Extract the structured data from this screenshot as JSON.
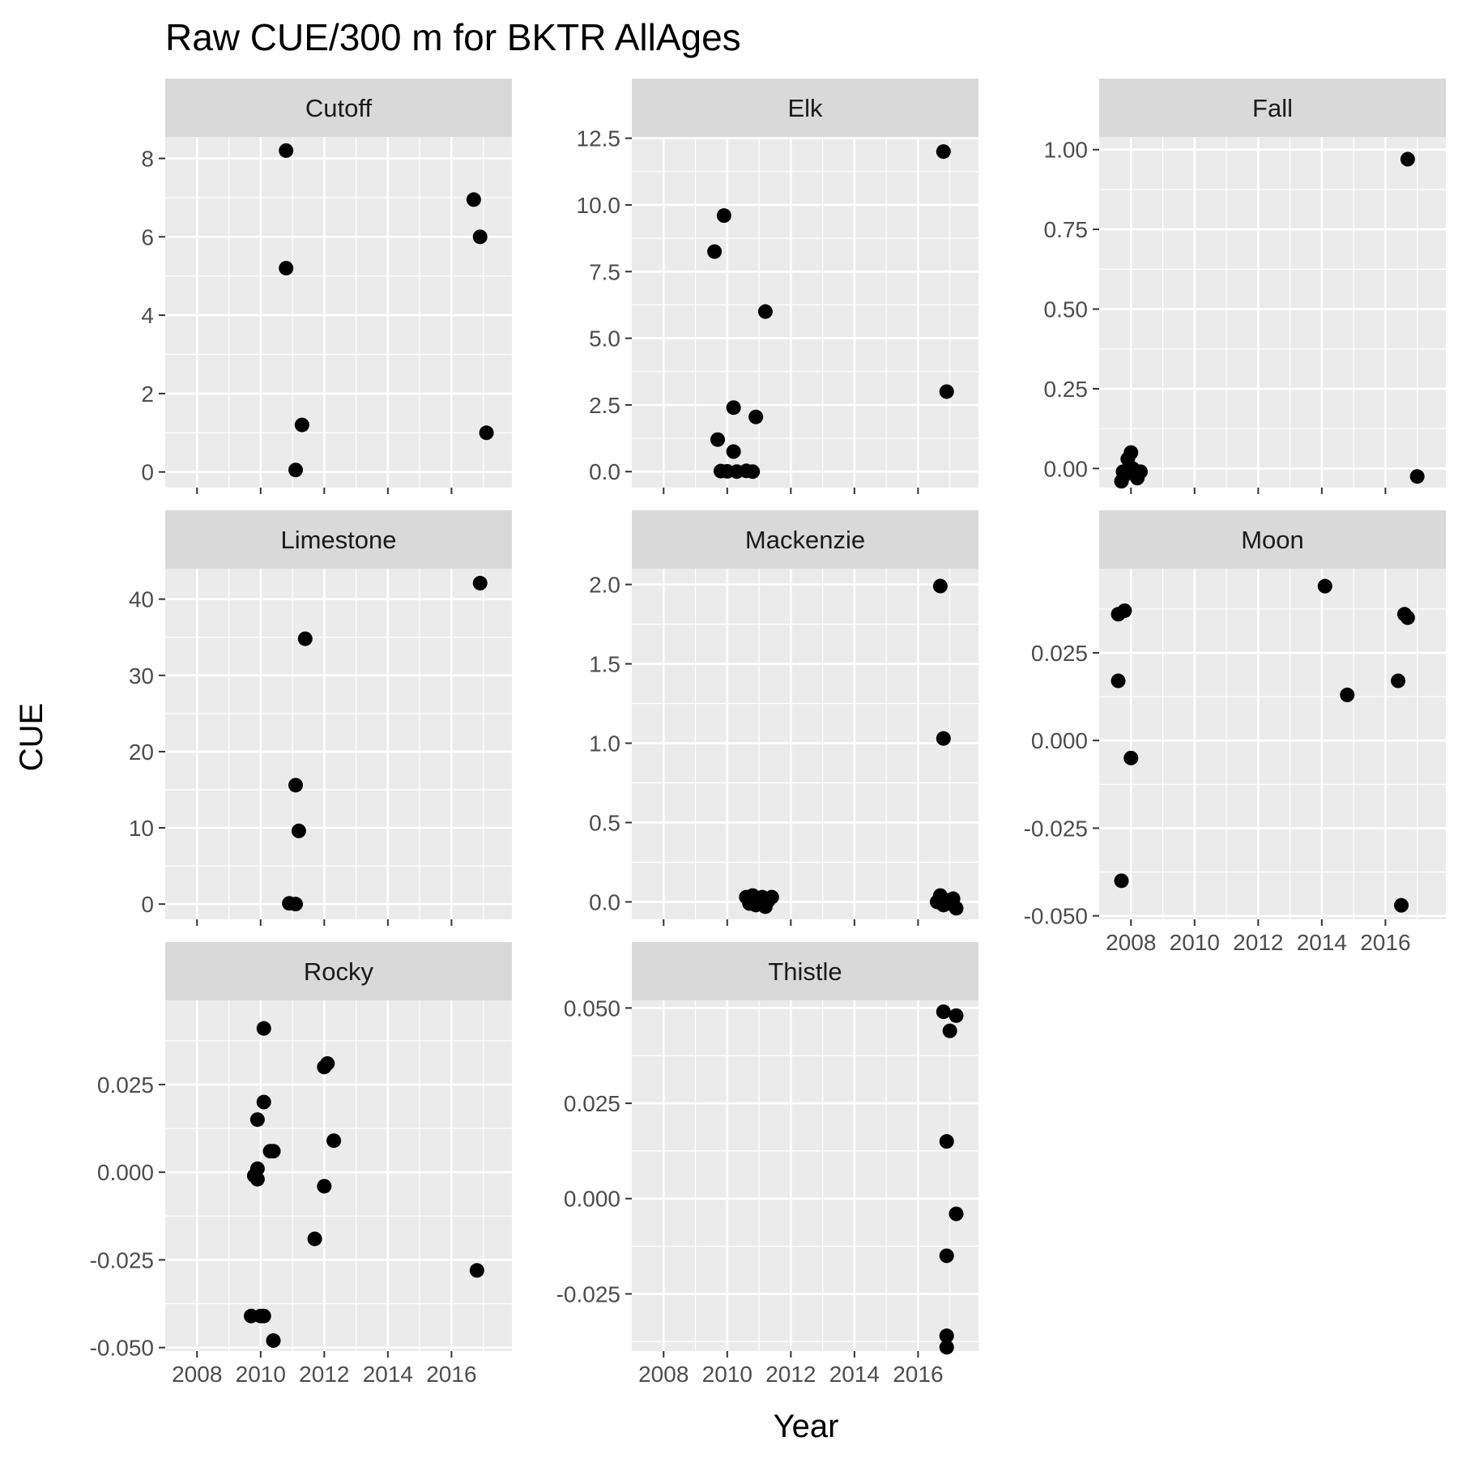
{
  "chart_data": {
    "type": "scatter",
    "title": "Raw CUE/300 m for BKTR AllAges",
    "xlabel": "Year",
    "ylabel": "CUE",
    "x_ticks": [
      2008,
      2010,
      2012,
      2014,
      2016
    ],
    "xlim": [
      2007.0,
      2017.9
    ],
    "grid": true,
    "colors": {
      "panel_bg": "#ebebeb",
      "strip_bg": "#d9d9d9",
      "grid": "#ffffff",
      "point": "#000000",
      "tick": "#333333"
    },
    "panels": [
      {
        "name": "Cutoff",
        "ylim": [
          -0.4,
          8.55
        ],
        "y_ticks": [
          0,
          2,
          4,
          6,
          8
        ],
        "y_tick_labels": [
          "0",
          "2",
          "4",
          "6",
          "8"
        ],
        "points": [
          [
            2010.8,
            8.2
          ],
          [
            2010.8,
            5.2
          ],
          [
            2011.3,
            1.2
          ],
          [
            2011.1,
            0.05
          ],
          [
            2016.7,
            6.95
          ],
          [
            2016.9,
            6.0
          ],
          [
            2017.1,
            1.0
          ]
        ]
      },
      {
        "name": "Elk",
        "ylim": [
          -0.6,
          12.55
        ],
        "y_ticks": [
          0.0,
          2.5,
          5.0,
          7.5,
          10.0,
          12.5
        ],
        "y_tick_labels": [
          "0.0",
          "2.5",
          "5.0",
          "7.5",
          "10.0",
          "12.5"
        ],
        "points": [
          [
            2009.9,
            9.6
          ],
          [
            2009.6,
            8.25
          ],
          [
            2011.2,
            6.0
          ],
          [
            2010.2,
            2.4
          ],
          [
            2010.9,
            2.05
          ],
          [
            2009.7,
            1.2
          ],
          [
            2010.2,
            0.75
          ],
          [
            2009.8,
            0.02
          ],
          [
            2010.0,
            0.01
          ],
          [
            2010.3,
            0.0
          ],
          [
            2010.6,
            0.03
          ],
          [
            2010.8,
            0.0
          ],
          [
            2016.8,
            12.0
          ],
          [
            2016.9,
            3.0
          ]
        ]
      },
      {
        "name": "Fall",
        "ylim": [
          -0.06,
          1.04
        ],
        "y_ticks": [
          0.0,
          0.25,
          0.5,
          0.75,
          1.0
        ],
        "y_tick_labels": [
          "0.00",
          "0.25",
          "0.50",
          "0.75",
          "1.00"
        ],
        "points": [
          [
            2007.7,
            -0.04
          ],
          [
            2007.8,
            -0.02
          ],
          [
            2007.9,
            0.03
          ],
          [
            2008.0,
            0.05
          ],
          [
            2008.1,
            -0.01
          ],
          [
            2008.2,
            -0.03
          ],
          [
            2008.3,
            -0.01
          ],
          [
            2007.75,
            -0.01
          ],
          [
            2008.05,
            0.0
          ],
          [
            2016.7,
            0.97
          ],
          [
            2017.0,
            -0.025
          ]
        ]
      },
      {
        "name": "Limestone",
        "ylim": [
          -2.0,
          44.0
        ],
        "y_ticks": [
          0,
          10,
          20,
          30,
          40
        ],
        "y_tick_labels": [
          "0",
          "10",
          "20",
          "30",
          "40"
        ],
        "points": [
          [
            2011.4,
            34.8
          ],
          [
            2011.1,
            15.6
          ],
          [
            2011.2,
            9.6
          ],
          [
            2010.9,
            0.1
          ],
          [
            2011.1,
            0.0
          ],
          [
            2016.9,
            42.1
          ]
        ]
      },
      {
        "name": "Mackenzie",
        "ylim": [
          -0.11,
          2.1
        ],
        "y_ticks": [
          0.0,
          0.5,
          1.0,
          1.5,
          2.0
        ],
        "y_tick_labels": [
          "0.0",
          "0.5",
          "1.0",
          "1.5",
          "2.0"
        ],
        "points": [
          [
            2010.6,
            0.03
          ],
          [
            2010.7,
            -0.01
          ],
          [
            2010.8,
            0.04
          ],
          [
            2010.9,
            -0.02
          ],
          [
            2011.0,
            0.0
          ],
          [
            2011.1,
            0.03
          ],
          [
            2011.2,
            -0.03
          ],
          [
            2011.3,
            0.01
          ],
          [
            2011.4,
            0.03
          ],
          [
            2010.75,
            0.01
          ],
          [
            2016.7,
            1.99
          ],
          [
            2016.8,
            1.03
          ],
          [
            2016.6,
            0.0
          ],
          [
            2016.7,
            0.04
          ],
          [
            2016.8,
            -0.02
          ],
          [
            2016.9,
            0.01
          ],
          [
            2017.0,
            -0.01
          ],
          [
            2017.1,
            0.02
          ],
          [
            2017.2,
            -0.04
          ]
        ]
      },
      {
        "name": "Moon",
        "ylim": [
          -0.051,
          0.049
        ],
        "y_ticks": [
          -0.05,
          -0.025,
          0.0,
          0.025
        ],
        "y_tick_labels": [
          "-0.050",
          "-0.025",
          "0.000",
          "0.025"
        ],
        "points": [
          [
            2007.6,
            0.036
          ],
          [
            2007.8,
            0.037
          ],
          [
            2007.6,
            0.017
          ],
          [
            2008.0,
            -0.005
          ],
          [
            2007.7,
            -0.04
          ],
          [
            2014.1,
            0.044
          ],
          [
            2014.8,
            0.013
          ],
          [
            2016.4,
            0.017
          ],
          [
            2016.6,
            0.036
          ],
          [
            2016.7,
            0.035
          ],
          [
            2016.5,
            -0.047
          ]
        ]
      },
      {
        "name": "Rocky",
        "ylim": [
          -0.051,
          0.049
        ],
        "y_ticks": [
          -0.05,
          -0.025,
          0.0,
          0.025
        ],
        "y_tick_labels": [
          "-0.050",
          "-0.025",
          "0.000",
          "0.025"
        ],
        "points": [
          [
            2010.1,
            0.041
          ],
          [
            2010.1,
            0.02
          ],
          [
            2009.9,
            0.015
          ],
          [
            2010.3,
            0.006
          ],
          [
            2010.4,
            0.006
          ],
          [
            2009.9,
            0.001
          ],
          [
            2009.8,
            -0.001
          ],
          [
            2009.9,
            -0.002
          ],
          [
            2009.7,
            -0.041
          ],
          [
            2010.0,
            -0.041
          ],
          [
            2010.1,
            -0.041
          ],
          [
            2010.4,
            -0.048
          ],
          [
            2012.0,
            0.03
          ],
          [
            2012.1,
            0.031
          ],
          [
            2012.3,
            0.009
          ],
          [
            2012.0,
            -0.004
          ],
          [
            2011.7,
            -0.019
          ],
          [
            2016.8,
            -0.028
          ]
        ]
      },
      {
        "name": "Thistle",
        "ylim": [
          -0.04,
          0.052
        ],
        "y_ticks": [
          -0.025,
          0.0,
          0.025,
          0.05
        ],
        "y_tick_labels": [
          "-0.025",
          "0.000",
          "0.025",
          "0.050"
        ],
        "points": [
          [
            2016.8,
            0.049
          ],
          [
            2017.2,
            0.048
          ],
          [
            2017.0,
            0.044
          ],
          [
            2016.9,
            0.015
          ],
          [
            2017.2,
            -0.004
          ],
          [
            2016.9,
            -0.015
          ],
          [
            2016.9,
            -0.036
          ],
          [
            2016.9,
            -0.039
          ]
        ]
      }
    ]
  }
}
